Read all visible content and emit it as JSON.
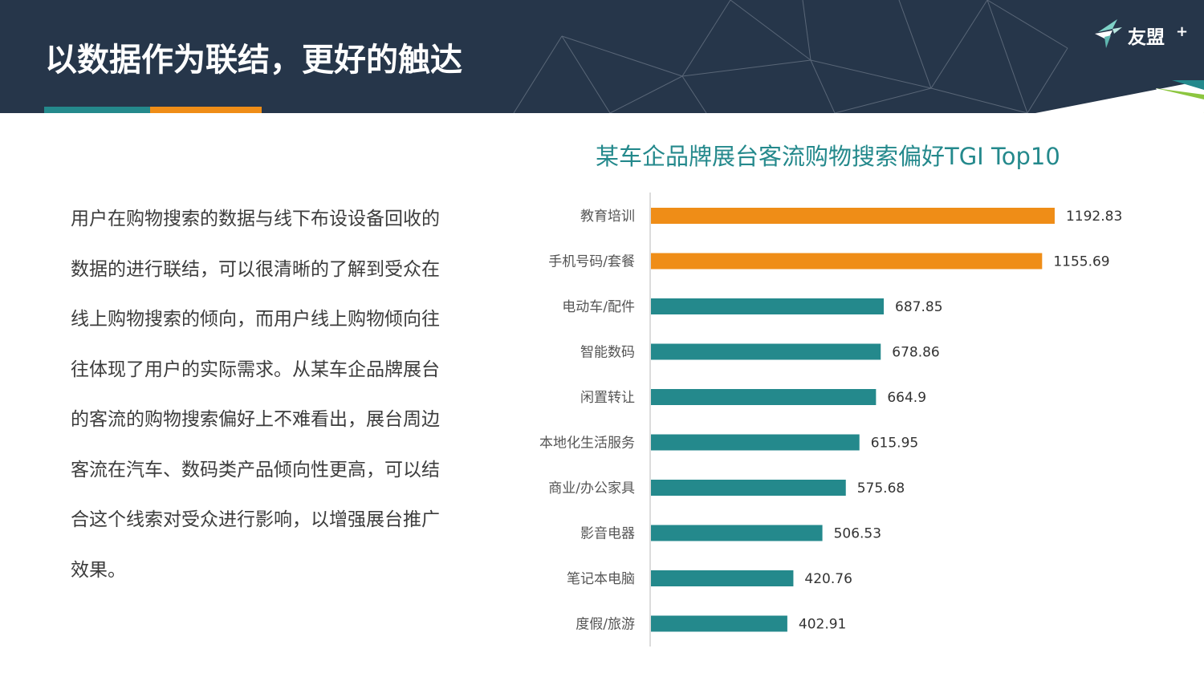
{
  "header": {
    "title": "以数据作为联结，更好的触达",
    "logo_text": "友盟",
    "logo_plus": "+"
  },
  "body_text": "用户在购物搜索的数据与线下布设设备回收的数据的进行联结，可以很清晰的了解到受众在线上购物搜索的倾向，而用户线上购物倾向往往体现了用户的实际需求。从某车企品牌展台的客流的购物搜索偏好上不难看出，展台周边客流在汽车、数码类产品倾向性更高，可以结合这个线索对受众进行影响，以增强展台推广效果。",
  "colors": {
    "header_bg": "#26364a",
    "teal": "#24898c",
    "orange": "#ef8d17",
    "text": "#3c3c3c"
  },
  "chart_data": {
    "type": "bar",
    "orientation": "horizontal",
    "title": "某车企品牌展台客流购物搜索偏好TGI Top10",
    "categories": [
      "教育培训",
      "手机号码/套餐",
      "电动车/配件",
      "智能数码",
      "闲置转让",
      "本地化生活服务",
      "商业/办公家具",
      "影音电器",
      "笔记本电脑",
      "度假/旅游"
    ],
    "values": [
      1192.83,
      1155.69,
      687.85,
      678.86,
      664.9,
      615.95,
      575.68,
      506.53,
      420.76,
      402.91
    ],
    "value_labels": [
      "1192.83",
      "1155.69",
      "687.85",
      "678.86",
      "664.9",
      "615.95",
      "575.68",
      "506.53",
      "420.76",
      "402.91"
    ],
    "highlight_top": 2,
    "xlim": [
      0,
      1200
    ],
    "grid": false,
    "legend": "none"
  }
}
